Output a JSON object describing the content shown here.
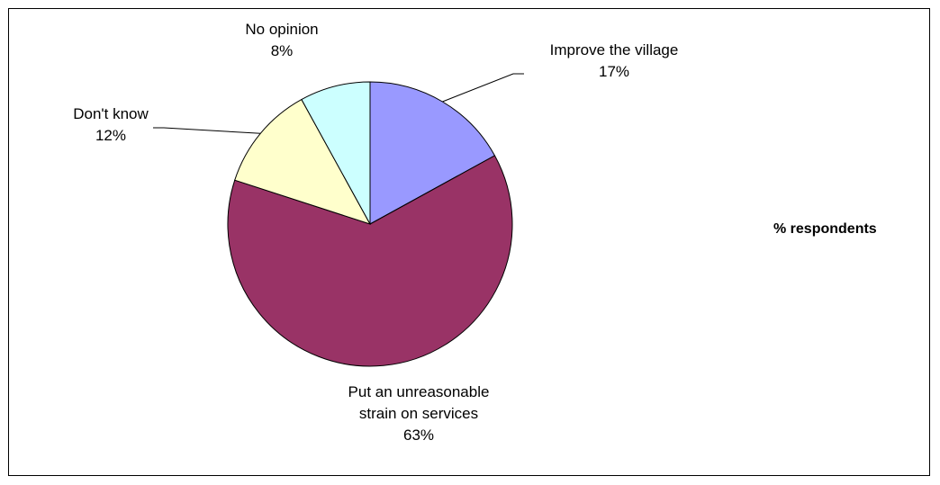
{
  "chart_data": {
    "type": "pie",
    "series_title": "% respondents",
    "slices": [
      {
        "name": "Improve the village",
        "value": 17,
        "value_label": "17%",
        "color": "#9999ff"
      },
      {
        "name": "Put an unreasonable strain on services",
        "name_lines": [
          "Put an unreasonable",
          "strain on services"
        ],
        "value": 63,
        "value_label": "63%",
        "color": "#993366"
      },
      {
        "name": "Don't know",
        "value": 12,
        "value_label": "12%",
        "color": "#ffffcc"
      },
      {
        "name": "No opinion",
        "value": 8,
        "value_label": "8%",
        "color": "#ccffff"
      }
    ],
    "start_angle_deg": 0,
    "direction": "clockwise",
    "legend": "right"
  }
}
